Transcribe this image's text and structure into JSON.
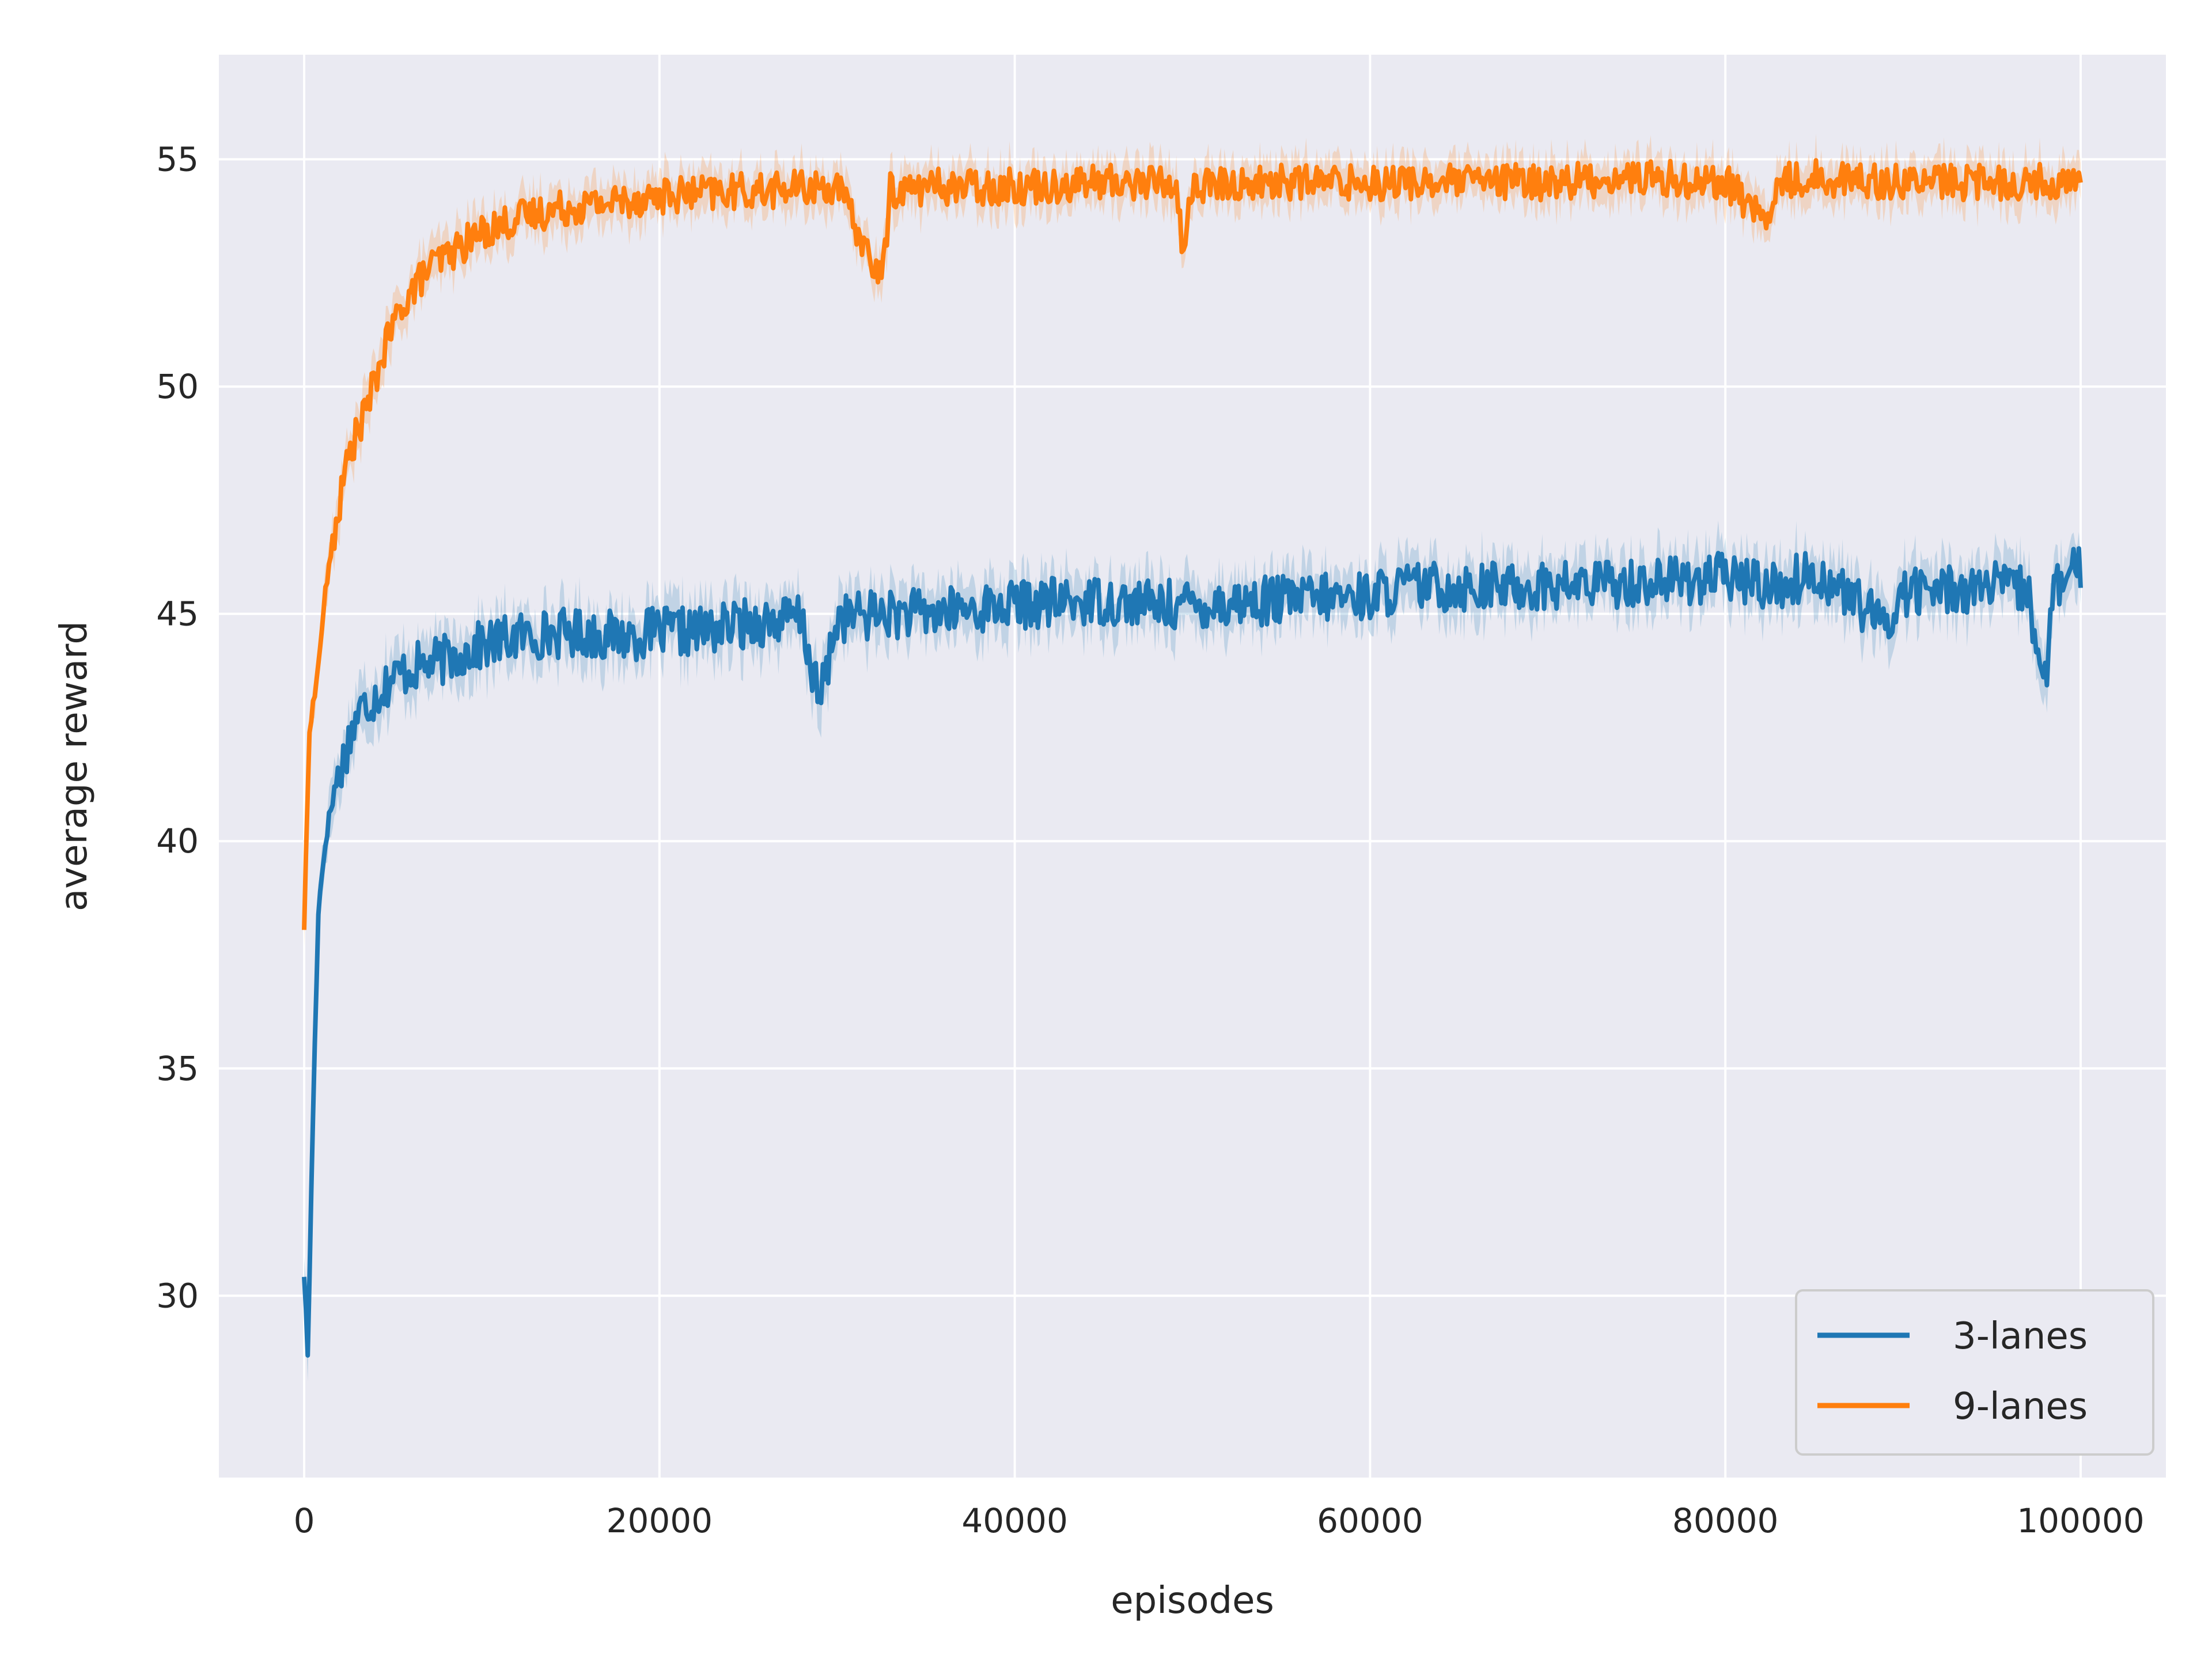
{
  "chart_data": {
    "type": "line",
    "title": "",
    "xlabel": "episodes",
    "ylabel": "average reward",
    "xlim": [
      -4800,
      104800
    ],
    "ylim": [
      26.0,
      57.3
    ],
    "xticks": [
      0,
      20000,
      40000,
      60000,
      80000,
      100000
    ],
    "xtick_labels": [
      "0",
      "20000",
      "40000",
      "60000",
      "80000",
      "100000"
    ],
    "yticks": [
      30,
      35,
      40,
      45,
      50,
      55
    ],
    "ytick_labels": [
      "30",
      "35",
      "40",
      "45",
      "50",
      "55"
    ],
    "grid": true,
    "legend_position": "lower-right",
    "background_color": "#eaeaf2",
    "grid_color": "#ffffff",
    "series": [
      {
        "name": "3-lanes",
        "color": "#1f77b4",
        "x": [
          0,
          200,
          500,
          800,
          1200,
          1600,
          2000,
          2500,
          3000,
          4000,
          5000,
          6000,
          8000,
          10000,
          12000,
          15000,
          18000,
          20000,
          22000,
          25000,
          28000,
          29000,
          30000,
          32000,
          35000,
          40000,
          45000,
          48000,
          50000,
          55000,
          60000,
          62000,
          65000,
          70000,
          75000,
          80000,
          83000,
          85000,
          87000,
          89000,
          90000,
          95000,
          97000,
          98000,
          98500,
          99000,
          100000
        ],
        "values": [
          30.5,
          28.7,
          34.0,
          38.5,
          40.0,
          41.0,
          41.5,
          42.2,
          42.8,
          43.2,
          43.6,
          43.8,
          44.0,
          44.3,
          44.5,
          44.6,
          44.5,
          44.6,
          44.6,
          44.8,
          44.9,
          43.0,
          44.9,
          45.0,
          45.0,
          45.2,
          45.3,
          45.2,
          45.2,
          45.3,
          45.4,
          45.6,
          45.6,
          45.6,
          45.7,
          45.8,
          45.6,
          45.9,
          45.4,
          44.7,
          45.5,
          45.6,
          45.5,
          43.5,
          45.5,
          45.7,
          46.0
        ],
        "band_halfwidth": 0.55
      },
      {
        "name": "9-lanes",
        "color": "#ff7f0e",
        "x": [
          0,
          300,
          700,
          1200,
          1800,
          2500,
          3500,
          4500,
          5500,
          7000,
          8500,
          10000,
          12000,
          14000,
          16000,
          18000,
          20000,
          25000,
          30000,
          32500,
          33000,
          35000,
          40000,
          45000,
          49000,
          49500,
          50000,
          55000,
          60000,
          65000,
          70000,
          75000,
          80000,
          82500,
          83000,
          85000,
          90000,
          95000,
          100000
        ],
        "values": [
          38.1,
          42.5,
          43.5,
          45.5,
          47.0,
          48.5,
          49.5,
          50.8,
          51.8,
          52.6,
          53.0,
          53.4,
          53.7,
          53.9,
          54.0,
          54.1,
          54.2,
          54.3,
          54.4,
          52.3,
          54.3,
          54.4,
          54.4,
          54.5,
          54.5,
          53.0,
          54.4,
          54.5,
          54.5,
          54.5,
          54.5,
          54.6,
          54.5,
          53.6,
          54.5,
          54.6,
          54.5,
          54.5,
          54.5
        ],
        "band_halfwidth": 0.45
      }
    ]
  }
}
